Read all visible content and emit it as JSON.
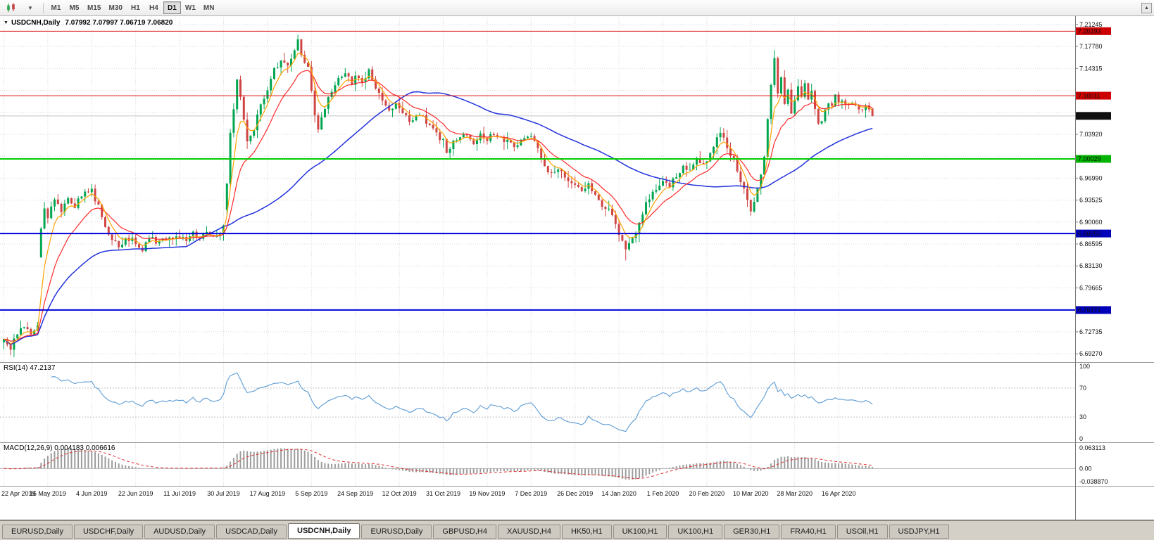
{
  "toolbar": {
    "icons": [
      "candlestick-chart-icon",
      "caret-down-icon",
      "toolbar-scroll-up-icon"
    ],
    "timeframes": [
      "M1",
      "M5",
      "M15",
      "M30",
      "H1",
      "H4",
      "D1",
      "W1",
      "MN"
    ],
    "active_timeframe": "D1",
    "scroll_up_glyph": "▲"
  },
  "chart": {
    "symbol_label": "USDCNH,Daily",
    "ohlc_text": "7.07992 7.07997 7.06719 7.06820",
    "collapse_glyph": "▼"
  },
  "chart_data": {
    "type": "candlestick",
    "symbol": "USDCNH",
    "period": "Daily",
    "candle_count": 258,
    "candles_per_tick": 13,
    "price_axis": {
      "top_price": 7.2245,
      "bottom_price": 6.6795,
      "grid_labels": [
        "7.21245",
        "7.17780",
        "7.14315",
        "7.10850",
        "7.07385",
        "7.03920",
        "7.00455",
        "6.96990",
        "6.93525",
        "6.90060",
        "6.86595",
        "6.83130",
        "6.79665",
        "6.76200",
        "6.72735",
        "6.69270"
      ]
    },
    "tags": [
      {
        "label": "7.20193",
        "price": 7.20193,
        "color": "#cc0000"
      },
      {
        "label": "7.10011",
        "price": 7.10011,
        "color": "#cc0000"
      },
      {
        "label": "7.06820",
        "price": 7.0682,
        "color": "#101010"
      },
      {
        "label": "7.00029",
        "price": 7.00029,
        "color": "#00b400"
      },
      {
        "label": "6.88250",
        "price": 6.8825,
        "color": "#0000bb"
      },
      {
        "label": "6.76171",
        "price": 6.76171,
        "color": "#0000bb"
      }
    ],
    "hlines": [
      {
        "price": 7.20193,
        "color": "#dd1111",
        "width": 1
      },
      {
        "price": 7.10011,
        "color": "#dd1111",
        "width": 1
      },
      {
        "price": 7.00029,
        "color": "#00cc00",
        "width": 2
      },
      {
        "price": 6.8825,
        "color": "#0000dd",
        "width": 2
      },
      {
        "price": 6.76171,
        "color": "#0000dd",
        "width": 2
      }
    ],
    "current_price": 7.0682,
    "last_candle": [
      7.07992,
      7.07997,
      7.06719,
      7.0682
    ],
    "x_ticks": [
      "22 Apr 2019",
      "16 May 2019",
      "4 Jun 2019",
      "22 Jun 2019",
      "11 Jul 2019",
      "30 Jul 2019",
      "17 Aug 2019",
      "5 Sep 2019",
      "24 Sep 2019",
      "12 Oct 2019",
      "31 Oct 2019",
      "19 Nov 2019",
      "7 Dec 2019",
      "26 Dec 2019",
      "14 Jan 2020",
      "1 Feb 2020",
      "20 Feb 2020",
      "10 Mar 2020",
      "28 Mar 2020",
      "16 Apr 2020"
    ],
    "waypoints": [
      [
        0,
        6.712
      ],
      [
        2,
        6.7
      ],
      [
        4,
        6.725
      ],
      [
        6,
        6.735
      ],
      [
        8,
        6.72
      ],
      [
        10,
        6.74
      ],
      [
        11,
        6.89
      ],
      [
        12,
        6.925
      ],
      [
        13,
        6.91
      ],
      [
        15,
        6.935
      ],
      [
        17,
        6.92
      ],
      [
        19,
        6.94
      ],
      [
        21,
        6.925
      ],
      [
        23,
        6.945
      ],
      [
        26,
        6.95
      ],
      [
        28,
        6.925
      ],
      [
        30,
        6.895
      ],
      [
        32,
        6.875
      ],
      [
        34,
        6.86
      ],
      [
        36,
        6.875
      ],
      [
        39,
        6.87
      ],
      [
        41,
        6.853
      ],
      [
        43,
        6.88
      ],
      [
        45,
        6.868
      ],
      [
        47,
        6.878
      ],
      [
        49,
        6.872
      ],
      [
        52,
        6.88
      ],
      [
        54,
        6.874
      ],
      [
        56,
        6.882
      ],
      [
        58,
        6.877
      ],
      [
        60,
        6.885
      ],
      [
        62,
        6.878
      ],
      [
        64,
        6.885
      ],
      [
        65,
        6.895
      ],
      [
        66,
        6.96
      ],
      [
        67,
        7.04
      ],
      [
        68,
        7.08
      ],
      [
        69,
        7.125
      ],
      [
        70,
        7.1
      ],
      [
        71,
        7.06
      ],
      [
        72,
        7.025
      ],
      [
        74,
        7.05
      ],
      [
        76,
        7.085
      ],
      [
        78,
        7.11
      ],
      [
        80,
        7.14
      ],
      [
        82,
        7.155
      ],
      [
        84,
        7.145
      ],
      [
        86,
        7.17
      ],
      [
        87,
        7.185
      ],
      [
        88,
        7.165
      ],
      [
        90,
        7.145
      ],
      [
        91,
        7.11
      ],
      [
        92,
        7.07
      ],
      [
        93,
        7.045
      ],
      [
        95,
        7.08
      ],
      [
        97,
        7.11
      ],
      [
        99,
        7.125
      ],
      [
        101,
        7.135
      ],
      [
        103,
        7.12
      ],
      [
        104,
        7.13
      ],
      [
        106,
        7.12
      ],
      [
        108,
        7.14
      ],
      [
        110,
        7.115
      ],
      [
        112,
        7.09
      ],
      [
        114,
        7.075
      ],
      [
        116,
        7.09
      ],
      [
        117,
        7.083
      ],
      [
        119,
        7.068
      ],
      [
        121,
        7.058
      ],
      [
        123,
        7.07
      ],
      [
        125,
        7.06
      ],
      [
        127,
        7.045
      ],
      [
        129,
        7.032
      ],
      [
        130,
        7.028
      ],
      [
        131,
        7.012
      ],
      [
        133,
        7.025
      ],
      [
        135,
        7.032
      ],
      [
        137,
        7.042
      ],
      [
        139,
        7.028
      ],
      [
        141,
        7.036
      ],
      [
        143,
        7.03
      ],
      [
        145,
        7.042
      ],
      [
        147,
        7.034
      ],
      [
        149,
        7.028
      ],
      [
        151,
        7.022
      ],
      [
        153,
        7.03
      ],
      [
        156,
        7.036
      ],
      [
        158,
        7.018
      ],
      [
        160,
        6.992
      ],
      [
        162,
        6.975
      ],
      [
        164,
        6.987
      ],
      [
        166,
        6.968
      ],
      [
        168,
        6.958
      ],
      [
        169,
        6.963
      ],
      [
        171,
        6.952
      ],
      [
        173,
        6.96
      ],
      [
        175,
        6.943
      ],
      [
        177,
        6.928
      ],
      [
        179,
        6.918
      ],
      [
        181,
        6.9
      ],
      [
        182,
        6.882
      ],
      [
        184,
        6.86
      ],
      [
        186,
        6.872
      ],
      [
        188,
        6.898
      ],
      [
        190,
        6.928
      ],
      [
        192,
        6.944
      ],
      [
        194,
        6.958
      ],
      [
        195,
        6.968
      ],
      [
        197,
        6.958
      ],
      [
        199,
        6.974
      ],
      [
        201,
        6.988
      ],
      [
        203,
        6.982
      ],
      [
        205,
        6.998
      ],
      [
        207,
        6.99
      ],
      [
        208,
        7.0
      ],
      [
        210,
        7.02
      ],
      [
        212,
        7.042
      ],
      [
        214,
        7.018
      ],
      [
        216,
        6.998
      ],
      [
        218,
        6.968
      ],
      [
        220,
        6.938
      ],
      [
        221,
        6.918
      ],
      [
        223,
        6.952
      ],
      [
        225,
        7.0
      ],
      [
        226,
        7.06
      ],
      [
        227,
        7.12
      ],
      [
        228,
        7.16
      ],
      [
        229,
        7.1
      ],
      [
        230,
        7.132
      ],
      [
        231,
        7.086
      ],
      [
        232,
        7.108
      ],
      [
        233,
        7.072
      ],
      [
        234,
        7.092
      ],
      [
        235,
        7.114
      ],
      [
        236,
        7.098
      ],
      [
        237,
        7.118
      ],
      [
        238,
        7.094
      ],
      [
        239,
        7.108
      ],
      [
        240,
        7.082
      ],
      [
        241,
        7.052
      ],
      [
        242,
        7.062
      ],
      [
        243,
        7.078
      ],
      [
        244,
        7.092
      ],
      [
        245,
        7.088
      ],
      [
        246,
        7.098
      ],
      [
        247,
        7.092
      ],
      [
        249,
        7.084
      ],
      [
        251,
        7.09
      ],
      [
        253,
        7.076
      ],
      [
        255,
        7.082
      ],
      [
        257,
        7.068
      ]
    ],
    "gap_overrides": {
      "11": 6.845,
      "66": 6.92
    },
    "wick_overrides": {
      "2": {
        "low": 6.69
      },
      "87": {
        "high": 7.196
      },
      "184": {
        "low": 6.84
      },
      "228": {
        "high": 7.172
      }
    },
    "ma_periods": {
      "fast": 5,
      "mid": 13,
      "slow": 55
    },
    "colors": {
      "up": "#00a651",
      "down": "#d04545",
      "ma_fast": "#ffa200",
      "ma_mid": "#ff2a2a",
      "ma_slow": "#2233dd",
      "grid": "#d9d9d9",
      "current_line": "#c4c4c4",
      "rsi_line": "#5b9bd5",
      "macd_hist": "#9c9c9c",
      "macd_signal": "#e03030",
      "separator": "#9a9a9a",
      "axis_line": "#7a7a7a"
    },
    "indicators": {
      "rsi": {
        "label": "RSI(14) 47.2137",
        "period": 14,
        "last": 47.2137,
        "axis_labels": [
          "100",
          "70",
          "30",
          "0"
        ],
        "axis_values": [
          100,
          70,
          30,
          0
        ],
        "levels": [
          70,
          30
        ],
        "range": [
          0,
          100
        ]
      },
      "macd": {
        "label": "MACD(12,26,9) 0.004183 0.006616",
        "values": [
          0.004183,
          0.006616
        ],
        "axis_top": "0.063113",
        "axis_mid": "0.00",
        "axis_bottom": "-0.038870",
        "top_value": 0.063113,
        "bottom_value": -0.03887
      }
    }
  },
  "tabs": {
    "items": [
      "EURUSD,Daily",
      "USDCHF,Daily",
      "AUDUSD,Daily",
      "USDCAD,Daily",
      "USDCNH,Daily",
      "EURUSD,Daily",
      "GBPUSD,H4",
      "XAUUSD,H4",
      "HK50,H1",
      "UK100,H1",
      "UK100,H1",
      "GER30,H1",
      "FRA40,H1",
      "USOil,H1",
      "USDJPY,H1"
    ],
    "active_index": 4
  }
}
